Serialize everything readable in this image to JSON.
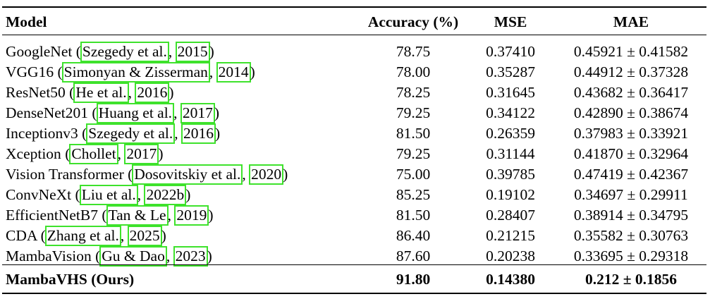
{
  "header": {
    "model": "Model",
    "accuracy": "Accuracy (%)",
    "mse": "MSE",
    "mae": "MAE"
  },
  "rows": [
    {
      "name": "GoogleNet",
      "cite_author": "Szegedy et al.",
      "cite_year": "2015",
      "accuracy": "78.75",
      "mse": "0.37410",
      "mae": "0.45921 ± 0.41582"
    },
    {
      "name": "VGG16",
      "cite_author": "Simonyan & Zisserman",
      "cite_year": "2014",
      "accuracy": "78.00",
      "mse": "0.35287",
      "mae": "0.44912 ± 0.37328"
    },
    {
      "name": "ResNet50",
      "cite_author": "He et al.",
      "cite_year": "2016",
      "accuracy": "78.25",
      "mse": "0.31645",
      "mae": "0.43682 ± 0.36417"
    },
    {
      "name": "DenseNet201",
      "cite_author": "Huang et al.",
      "cite_year": "2017",
      "accuracy": "79.25",
      "mse": "0.34122",
      "mae": "0.42890 ± 0.38674"
    },
    {
      "name": "Inceptionv3",
      "cite_author": "Szegedy et al.",
      "cite_year": "2016",
      "accuracy": "81.50",
      "mse": "0.26359",
      "mae": "0.37983 ± 0.33921"
    },
    {
      "name": "Xception",
      "cite_author": "Chollet",
      "cite_year": "2017",
      "accuracy": "79.25",
      "mse": "0.31144",
      "mae": "0.41870 ± 0.32964"
    },
    {
      "name": "Vision Transformer",
      "cite_author": "Dosovitskiy et al.",
      "cite_year": "2020",
      "accuracy": "75.00",
      "mse": "0.39785",
      "mae": "0.47419 ± 0.42367"
    },
    {
      "name": "ConvNeXt",
      "cite_author": "Liu et al.",
      "cite_year": "2022b",
      "accuracy": "85.25",
      "mse": "0.19102",
      "mae": "0.34697 ± 0.29911"
    },
    {
      "name": "EfficientNetB7",
      "cite_author": "Tan & Le",
      "cite_year": "2019",
      "accuracy": "81.50",
      "mse": "0.28407",
      "mae": "0.38914 ± 0.34795"
    },
    {
      "name": "CDA",
      "cite_author": "Zhang et al.",
      "cite_year": "2025",
      "accuracy": "86.40",
      "mse": "0.21215",
      "mae": "0.35582 ± 0.30763"
    },
    {
      "name": "MambaVision",
      "cite_author": "Gu & Dao",
      "cite_year": "2023",
      "accuracy": "87.60",
      "mse": "0.20238",
      "mae": "0.33695 ± 0.29318"
    }
  ],
  "ours": {
    "name": "MambaVHS (Ours)",
    "accuracy": "91.80",
    "mse": "0.14380",
    "mae": "0.212 ± 0.1856"
  },
  "colors": {
    "citation_box": "#3ee22c",
    "text": "#000000",
    "background": "#ffffff"
  }
}
